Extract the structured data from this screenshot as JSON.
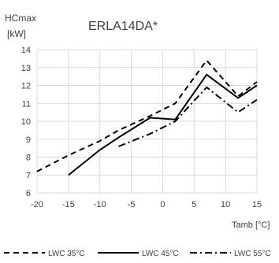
{
  "chart_data": {
    "type": "line",
    "title": "ERLA14DA*",
    "ylabel_line1": "HCmax",
    "ylabel_line2": "[kW]",
    "xlabel": "Tamb [°C]",
    "xlim": [
      -20,
      15
    ],
    "ylim": [
      6,
      14
    ],
    "x_ticks": [
      -20,
      -15,
      -10,
      -5,
      0,
      5,
      10,
      15
    ],
    "y_ticks": [
      6,
      7,
      8,
      9,
      10,
      11,
      12,
      13,
      14
    ],
    "grid": true,
    "legend_position": "bottom",
    "series": [
      {
        "name": "LWC 35°C",
        "style": "dashed",
        "color": "#000000",
        "x": [
          -20,
          -15,
          -10,
          -7,
          -2,
          2,
          7,
          12,
          15
        ],
        "y": [
          7.2,
          8.1,
          8.9,
          9.5,
          10.3,
          11.0,
          13.4,
          11.4,
          12.2
        ]
      },
      {
        "name": "LWC 45°C",
        "style": "solid",
        "color": "#000000",
        "x": [
          -15,
          -10,
          -7,
          -2,
          2,
          7,
          12,
          15
        ],
        "y": [
          7.0,
          8.4,
          9.1,
          10.2,
          10.1,
          12.6,
          11.3,
          12.0
        ]
      },
      {
        "name": "LWC 55°C",
        "style": "dashdot",
        "color": "#000000",
        "x": [
          -7,
          -2,
          2,
          7,
          12,
          15
        ],
        "y": [
          8.6,
          9.3,
          10.0,
          11.9,
          10.5,
          11.2
        ]
      }
    ]
  }
}
